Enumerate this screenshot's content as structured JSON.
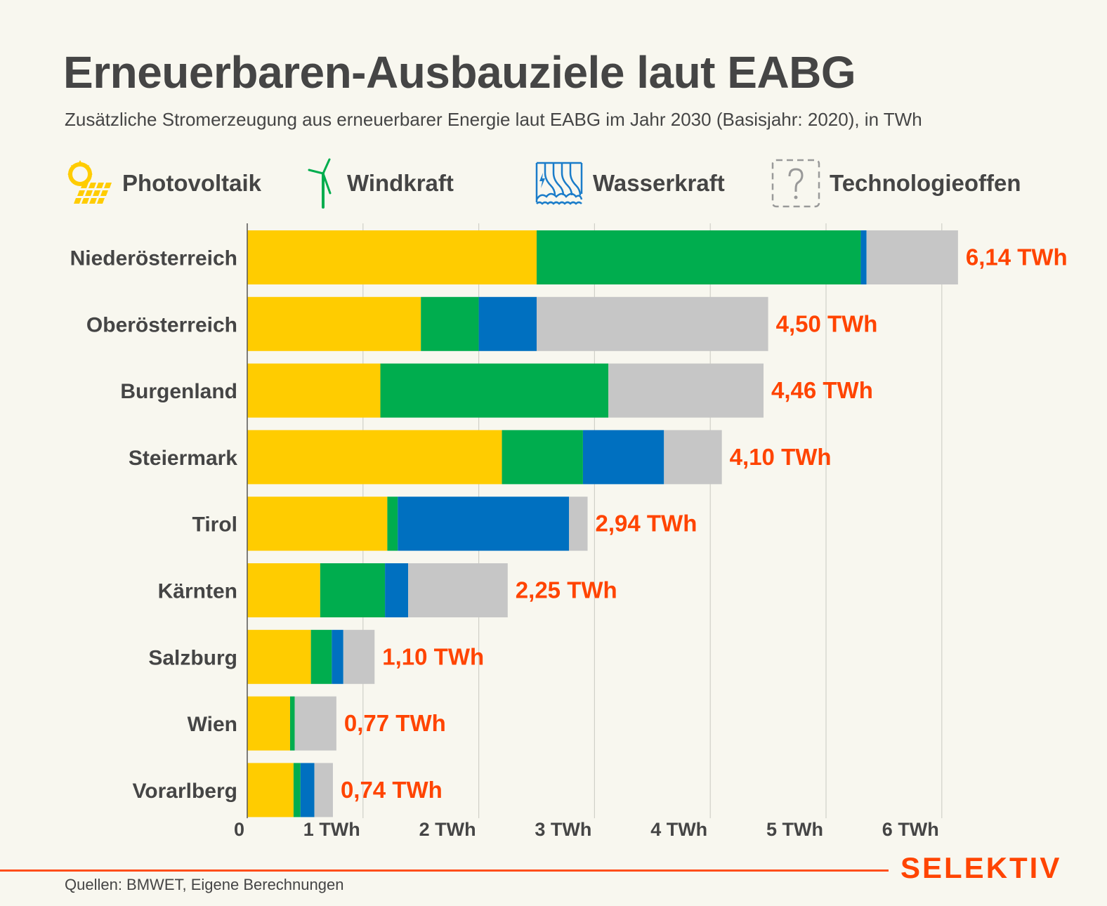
{
  "header": {
    "title": "Erneuerbaren-Ausbauziele laut EABG",
    "subtitle": "Zusätzliche Stromerzeugung aus erneuerbarer Energie laut EABG im Jahr 2030 (Basisjahr: 2020), in TWh"
  },
  "legend": [
    {
      "label": "Photovoltaik",
      "icon": "solar-panel-icon",
      "color": "#ffcc00"
    },
    {
      "label": "Windkraft",
      "icon": "wind-turbine-icon",
      "color": "#00ad4e"
    },
    {
      "label": "Wasserkraft",
      "icon": "hydro-dam-icon",
      "color": "#0070c0"
    },
    {
      "label": "Technologieoffen",
      "icon": "question-mark-icon",
      "color": "#c6c6c6"
    }
  ],
  "footer": {
    "source": "Quellen: BMWET, Eigene Berechnungen",
    "brand": "SELEKTIV",
    "accent_color": "#ff4400"
  },
  "chart_data": {
    "type": "bar",
    "orientation": "horizontal",
    "stacked": true,
    "title": "Erneuerbaren-Ausbauziele laut EABG",
    "subtitle": "Zusätzliche Stromerzeugung aus erneuerbarer Energie laut EABG im Jahr 2030 (Basisjahr: 2020), in TWh",
    "xlabel": "",
    "ylabel": "",
    "xlim": [
      0,
      6.2
    ],
    "grid": true,
    "legend_position": "top",
    "x_ticks": [
      0,
      1,
      2,
      3,
      4,
      5,
      6
    ],
    "x_tick_labels": [
      "0",
      "1 TWh",
      "2 TWh",
      "3 TWh",
      "4 TWh",
      "5 TWh",
      "6 TWh"
    ],
    "categories": [
      "Niederösterreich",
      "Oberösterreich",
      "Burgenland",
      "Steiermark",
      "Tirol",
      "Kärnten",
      "Salzburg",
      "Wien",
      "Vorarlberg"
    ],
    "series": [
      {
        "name": "Photovoltaik",
        "color": "#ffcc00",
        "values": [
          2.5,
          1.5,
          1.15,
          2.2,
          1.21,
          0.63,
          0.55,
          0.37,
          0.4
        ]
      },
      {
        "name": "Windkraft",
        "color": "#00ad4e",
        "values": [
          2.8,
          0.5,
          1.97,
          0.7,
          0.09,
          0.56,
          0.18,
          0.04,
          0.06
        ]
      },
      {
        "name": "Wasserkraft",
        "color": "#0070c0",
        "values": [
          0.05,
          0.5,
          0.0,
          0.7,
          1.48,
          0.2,
          0.1,
          0.0,
          0.12
        ]
      },
      {
        "name": "Technologieoffen",
        "color": "#c6c6c6",
        "values": [
          0.79,
          2.0,
          1.34,
          0.5,
          0.16,
          0.86,
          0.27,
          0.36,
          0.16
        ]
      }
    ],
    "totals": [
      6.14,
      4.5,
      4.46,
      4.1,
      2.94,
      2.25,
      1.1,
      0.77,
      0.74
    ],
    "total_labels": [
      "6,14 TWh",
      "4,50 TWh",
      "4,46 TWh",
      "4,10 TWh",
      "2,94 TWh",
      "2,25 TWh",
      "1,10 TWh",
      "0,77 TWh",
      "0,74 TWh"
    ],
    "total_label_color": "#ff4400"
  }
}
